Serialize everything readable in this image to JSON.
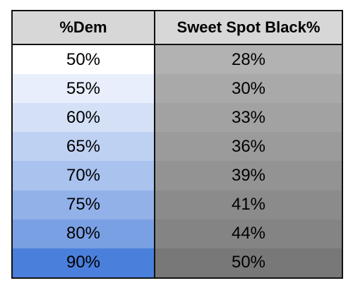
{
  "table": {
    "headers": [
      "%Dem",
      "Sweet Spot Black%"
    ],
    "rows": [
      {
        "dem": "50%",
        "black": "28%",
        "dem_color": "#ffffff",
        "black_color": "#b2b2b2"
      },
      {
        "dem": "55%",
        "black": "30%",
        "dem_color": "#e8eefb",
        "black_color": "#a9a9a9"
      },
      {
        "dem": "60%",
        "black": "33%",
        "dem_color": "#d3e0f6",
        "black_color": "#a2a2a2"
      },
      {
        "dem": "65%",
        "black": "36%",
        "dem_color": "#bfd1f2",
        "black_color": "#9b9b9b"
      },
      {
        "dem": "70%",
        "black": "39%",
        "dem_color": "#a9c2ee",
        "black_color": "#939393"
      },
      {
        "dem": "75%",
        "black": "41%",
        "dem_color": "#93b1e9",
        "black_color": "#8b8b8b"
      },
      {
        "dem": "80%",
        "black": "44%",
        "dem_color": "#7aa0e4",
        "black_color": "#848484"
      },
      {
        "dem": "90%",
        "black": "50%",
        "dem_color": "#4a7fdc",
        "black_color": "#787878"
      }
    ]
  }
}
